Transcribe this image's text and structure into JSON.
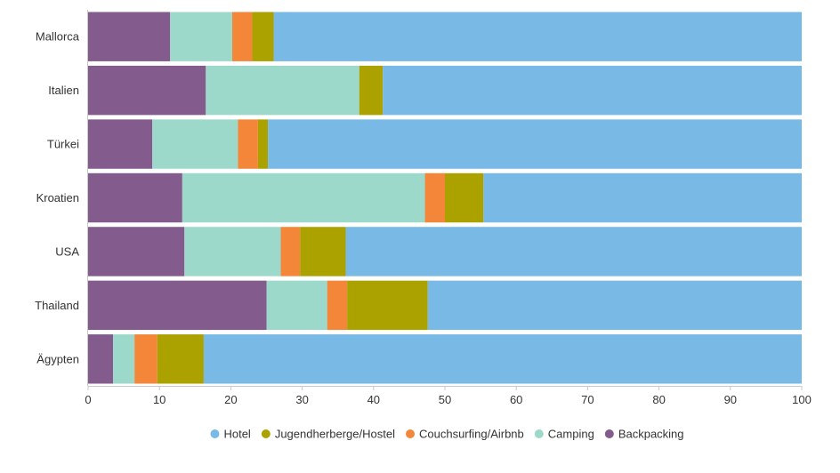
{
  "chart_data": {
    "type": "bar",
    "orientation": "horizontal",
    "stacked": true,
    "categories": [
      "Mallorca",
      "Italien",
      "Türkei",
      "Kroatien",
      "USA",
      "Thailand",
      "Ägypten"
    ],
    "series": [
      {
        "name": "Backpacking",
        "color": "#845b8d",
        "values": [
          11.5,
          16.5,
          9,
          13.2,
          13.5,
          25,
          3.5
        ]
      },
      {
        "name": "Camping",
        "color": "#9dd9cb",
        "values": [
          8.7,
          21.5,
          12,
          34,
          13.5,
          8.5,
          3
        ]
      },
      {
        "name": "Couchsurfing/Airbnb",
        "color": "#f4863a",
        "values": [
          2.8,
          0,
          2.8,
          2.8,
          2.7,
          2.8,
          3.2
        ]
      },
      {
        "name": "Jugendherberge/Hostel",
        "color": "#aba200",
        "values": [
          3,
          3.3,
          1.4,
          5.4,
          6.4,
          11.3,
          6.5
        ]
      },
      {
        "name": "Hotel",
        "color": "#78b9e6",
        "values": [
          74,
          58.7,
          74.8,
          44.6,
          63.9,
          52.4,
          83.8
        ]
      }
    ],
    "xlim": [
      0,
      100
    ],
    "xticks": [
      0,
      10,
      20,
      30,
      40,
      50,
      60,
      70,
      80,
      90,
      100
    ],
    "legend_order": [
      "Hotel",
      "Jugendherberge/Hostel",
      "Couchsurfing/Airbnb",
      "Camping",
      "Backpacking"
    ],
    "legend_position": "bottom",
    "grid": false,
    "title": "",
    "xlabel": "",
    "ylabel": ""
  }
}
